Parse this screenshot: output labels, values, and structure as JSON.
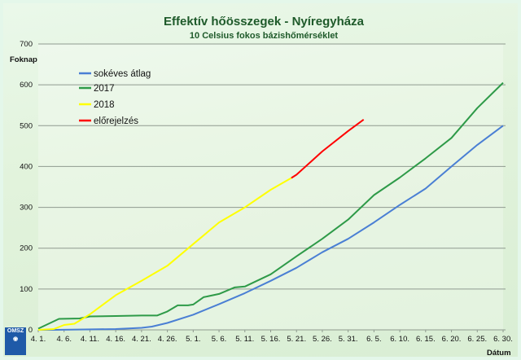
{
  "chart_data": {
    "type": "line",
    "title": "Effektív hőösszegek - Nyíregyháza",
    "subtitle": "10 Celsius fokos bázishőmérséklet",
    "ylabel": "Foknap",
    "xlabel": "Dátum",
    "ylim": [
      0,
      700
    ],
    "yticks": [
      0,
      100,
      200,
      300,
      400,
      500,
      600,
      700
    ],
    "xrange": [
      "04-01",
      "06-30"
    ],
    "xticks": [
      "4. 1.",
      "4. 6.",
      "4. 11.",
      "4. 16.",
      "4. 21.",
      "4. 26.",
      "5. 1.",
      "5. 6.",
      "5. 11.",
      "5. 16.",
      "5. 21.",
      "5. 26.",
      "5. 31.",
      "6. 5.",
      "6. 10.",
      "6. 15.",
      "6. 20.",
      "6. 25.",
      "6. 30."
    ],
    "grid": "horizontal",
    "legend_position": "top-left",
    "series": [
      {
        "name": "sokéves átlag",
        "color": "#4a7fd4",
        "points": [
          [
            "04-01",
            0
          ],
          [
            "04-04",
            0
          ],
          [
            "04-10",
            1
          ],
          [
            "04-16",
            2
          ],
          [
            "04-21",
            5
          ],
          [
            "04-23",
            8
          ],
          [
            "04-26",
            17
          ],
          [
            "05-01",
            37
          ],
          [
            "05-06",
            63
          ],
          [
            "05-11",
            90
          ],
          [
            "05-16",
            120
          ],
          [
            "05-21",
            152
          ],
          [
            "05-26",
            190
          ],
          [
            "05-31",
            223
          ],
          [
            "06-05",
            263
          ],
          [
            "06-10",
            306
          ],
          [
            "06-15",
            346
          ],
          [
            "06-20",
            400
          ],
          [
            "06-25",
            453
          ],
          [
            "06-30",
            500
          ]
        ]
      },
      {
        "name": "2017",
        "color": "#2e9a48",
        "points": [
          [
            "04-01",
            3
          ],
          [
            "04-05",
            27
          ],
          [
            "04-09",
            28
          ],
          [
            "04-11",
            33
          ],
          [
            "04-16",
            34
          ],
          [
            "04-21",
            35
          ],
          [
            "04-24",
            35
          ],
          [
            "04-26",
            45
          ],
          [
            "04-28",
            60
          ],
          [
            "04-30",
            60
          ],
          [
            "05-01",
            62
          ],
          [
            "05-03",
            80
          ],
          [
            "05-06",
            88
          ],
          [
            "05-09",
            104
          ],
          [
            "05-11",
            106
          ],
          [
            "05-16",
            136
          ],
          [
            "05-21",
            180
          ],
          [
            "05-26",
            223
          ],
          [
            "05-31",
            270
          ],
          [
            "06-05",
            330
          ],
          [
            "06-10",
            373
          ],
          [
            "06-15",
            420
          ],
          [
            "06-20",
            470
          ],
          [
            "06-25",
            543
          ],
          [
            "06-30",
            605
          ]
        ]
      },
      {
        "name": "2018",
        "color": "#ffff00",
        "points": [
          [
            "04-01",
            0
          ],
          [
            "04-04",
            2
          ],
          [
            "04-06",
            12
          ],
          [
            "04-08",
            15
          ],
          [
            "04-11",
            38
          ],
          [
            "04-16",
            85
          ],
          [
            "04-21",
            120
          ],
          [
            "04-26",
            157
          ],
          [
            "05-01",
            210
          ],
          [
            "05-06",
            263
          ],
          [
            "05-11",
            300
          ],
          [
            "05-16",
            343
          ],
          [
            "05-20",
            372
          ]
        ]
      },
      {
        "name": "előrejelzés",
        "color": "#ff0000",
        "points": [
          [
            "05-20",
            372
          ],
          [
            "05-21",
            380
          ],
          [
            "05-26",
            437
          ],
          [
            "05-31",
            487
          ],
          [
            "06-03",
            515
          ]
        ]
      }
    ]
  },
  "logo": {
    "text": "OMSZ"
  }
}
